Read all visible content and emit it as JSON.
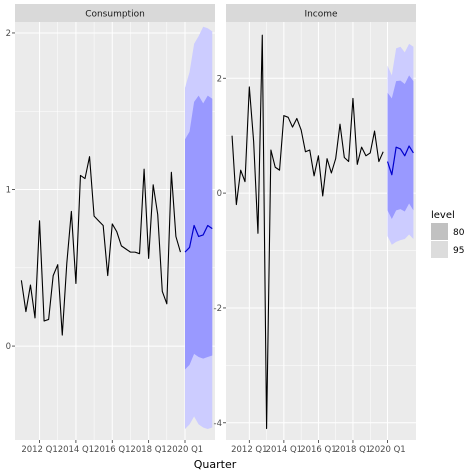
{
  "chart_data": [
    {
      "type": "line",
      "panel": "Consumption",
      "xlabel": "Quarter",
      "x_ticks": [
        "2012 Q1",
        "2014 Q1",
        "2016 Q1",
        "2018 Q1",
        "2020 Q1"
      ],
      "y_ticks": [
        0,
        1,
        2
      ],
      "ylim": [
        -0.6,
        2.07
      ],
      "xlim": [
        2010.65,
        2021.65
      ],
      "series": [
        {
          "role": "history",
          "color": "#000000",
          "x": [
            2011.0,
            2011.25,
            2011.5,
            2011.75,
            2012.0,
            2012.25,
            2012.5,
            2012.75,
            2013.0,
            2013.25,
            2013.5,
            2013.75,
            2014.0,
            2014.25,
            2014.5,
            2014.75,
            2015.0,
            2015.25,
            2015.5,
            2015.75,
            2016.0,
            2016.25,
            2016.5,
            2016.75,
            2017.0,
            2017.25,
            2017.5,
            2017.75,
            2018.0,
            2018.25,
            2018.5,
            2018.75,
            2019.0,
            2019.25,
            2019.5,
            2019.75
          ],
          "y": [
            0.42,
            0.22,
            0.39,
            0.18,
            0.8,
            0.16,
            0.17,
            0.45,
            0.52,
            0.07,
            0.53,
            0.86,
            0.4,
            1.09,
            1.07,
            1.21,
            0.83,
            0.8,
            0.77,
            0.45,
            0.78,
            0.73,
            0.64,
            0.62,
            0.6,
            0.6,
            0.59,
            1.13,
            0.56,
            1.03,
            0.84,
            0.35,
            0.27,
            1.11,
            0.7,
            0.6
          ]
        },
        {
          "role": "forecast-mean",
          "color": "#0000cc",
          "x": [
            2020.0,
            2020.25,
            2020.5,
            2020.75,
            2021.0,
            2021.25,
            2021.5
          ],
          "y": [
            0.6,
            0.63,
            0.77,
            0.7,
            0.71,
            0.77,
            0.75
          ]
        }
      ],
      "intervals": [
        {
          "level": "95",
          "x": [
            2020.0,
            2020.25,
            2020.5,
            2020.75,
            2021.0,
            2021.25,
            2021.5
          ],
          "lower": [
            -0.53,
            -0.5,
            -0.45,
            -0.5,
            -0.52,
            -0.53,
            -0.52
          ],
          "upper": [
            1.65,
            1.75,
            1.93,
            1.98,
            2.04,
            2.03,
            2.01
          ]
        },
        {
          "level": "80",
          "x": [
            2020.0,
            2020.25,
            2020.5,
            2020.75,
            2021.0,
            2021.25,
            2021.5
          ],
          "lower": [
            -0.15,
            -0.12,
            -0.05,
            -0.07,
            -0.08,
            -0.07,
            -0.06
          ],
          "upper": [
            1.32,
            1.37,
            1.56,
            1.6,
            1.55,
            1.6,
            1.58
          ]
        }
      ]
    },
    {
      "type": "line",
      "panel": "Income",
      "xlabel": "Quarter",
      "x_ticks": [
        "2012 Q1",
        "2014 Q1",
        "2016 Q1",
        "2018 Q1",
        "2020 Q1"
      ],
      "y_ticks": [
        -4,
        -2,
        0,
        2
      ],
      "ylim": [
        -4.3,
        2.98
      ],
      "xlim": [
        2010.65,
        2021.65
      ],
      "series": [
        {
          "role": "history",
          "color": "#000000",
          "x": [
            2011.0,
            2011.25,
            2011.5,
            2011.75,
            2012.0,
            2012.25,
            2012.5,
            2012.75,
            2013.0,
            2013.25,
            2013.5,
            2013.75,
            2014.0,
            2014.25,
            2014.5,
            2014.75,
            2015.0,
            2015.25,
            2015.5,
            2015.75,
            2016.0,
            2016.25,
            2016.5,
            2016.75,
            2017.0,
            2017.25,
            2017.5,
            2017.75,
            2018.0,
            2018.25,
            2018.5,
            2018.75,
            2019.0,
            2019.25,
            2019.5,
            2019.75
          ],
          "y": [
            1.0,
            -0.2,
            0.4,
            0.2,
            1.85,
            0.9,
            -0.7,
            2.75,
            -4.1,
            0.75,
            0.45,
            0.4,
            1.35,
            1.32,
            1.15,
            1.3,
            1.1,
            0.72,
            0.75,
            0.3,
            0.65,
            -0.05,
            0.6,
            0.35,
            0.6,
            1.2,
            0.62,
            0.55,
            1.65,
            0.5,
            0.8,
            0.65,
            0.7,
            1.08,
            0.55,
            0.72
          ]
        },
        {
          "role": "forecast-mean",
          "color": "#0000cc",
          "x": [
            2020.0,
            2020.25,
            2020.5,
            2020.75,
            2021.0,
            2021.25,
            2021.5
          ],
          "y": [
            0.55,
            0.32,
            0.8,
            0.77,
            0.65,
            0.82,
            0.7
          ]
        }
      ],
      "intervals": [
        {
          "level": "95",
          "x": [
            2020.0,
            2020.25,
            2020.5,
            2020.75,
            2021.0,
            2021.25,
            2021.5
          ],
          "lower": [
            -0.75,
            -0.9,
            -0.85,
            -0.82,
            -0.8,
            -0.72,
            -0.8
          ],
          "upper": [
            2.22,
            2.05,
            2.52,
            2.55,
            2.45,
            2.6,
            2.55
          ]
        },
        {
          "level": "80",
          "x": [
            2020.0,
            2020.25,
            2020.5,
            2020.75,
            2021.0,
            2021.25,
            2021.5
          ],
          "lower": [
            -0.3,
            -0.45,
            -0.3,
            -0.28,
            -0.32,
            -0.18,
            -0.3
          ],
          "upper": [
            1.75,
            1.65,
            1.95,
            1.96,
            1.9,
            2.05,
            1.95
          ]
        }
      ]
    }
  ],
  "legend": {
    "title": "level",
    "placement": "right",
    "entries": [
      {
        "label": "80",
        "color": "#c1c1c1"
      },
      {
        "label": "95",
        "color": "#dcdcdc"
      }
    ]
  },
  "colors": {
    "band_80": "#9999ff",
    "band_95": "#ccccff",
    "panel_background": "#ebebeb",
    "strip_background": "#d9d9d9",
    "gridline": "#ffffff"
  }
}
